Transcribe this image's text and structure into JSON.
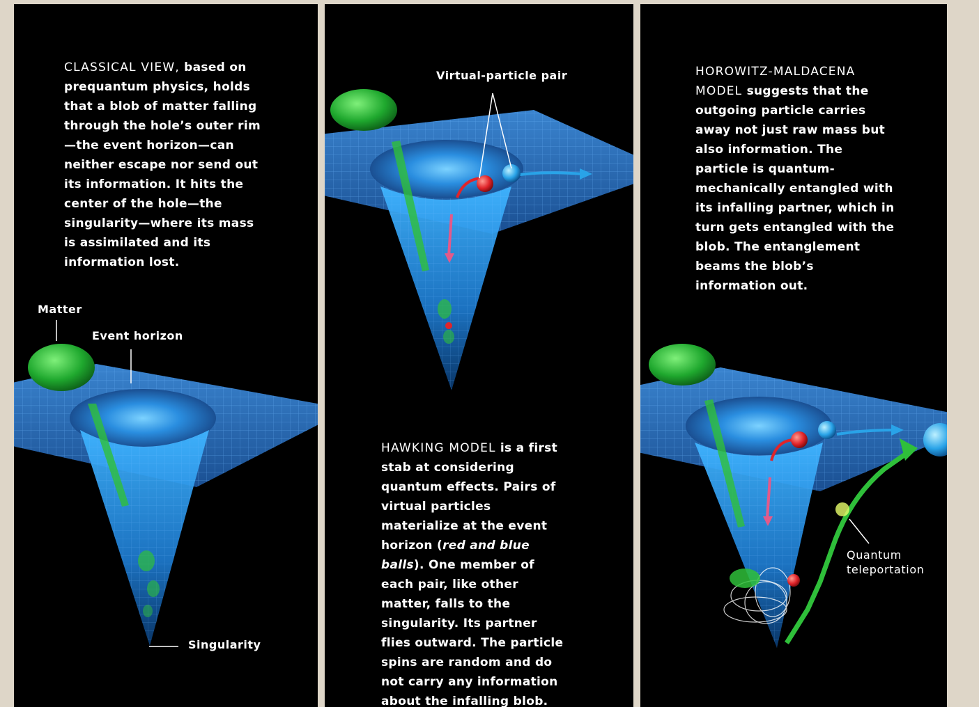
{
  "panels": {
    "classical": {
      "lead": "CLASSICAL VIEW,",
      "text": "based on prequantum physics, holds that a blob of matter falling through the hole’s outer rim—the event horizon—can neither escape nor send out its information. It hits the center of the hole—the singularity—where its mass is assimilated and its information lost.",
      "labels": {
        "matter": "Matter",
        "event_horizon": "Event horizon",
        "singularity": "Singularity"
      }
    },
    "hawking": {
      "lead": "HAWKING MODEL",
      "text_a": "is a first stab at considering quantum effects. Pairs of virtual particles materialize at the event horizon (",
      "text_italic": "red and blue balls",
      "text_b": "). One member of each pair, like other matter, falls to the singularity. Its partner flies outward. The particle spins are random and do not carry any information about the infalling blob.",
      "labels": {
        "virtual_pair": "Virtual-particle pair"
      }
    },
    "horowitz": {
      "lead": "HOROWITZ-MALDACENA MODEL",
      "text": "suggests that the outgoing particle carries away not just raw mass but also information. The particle is quantum-mechanically entangled with its infalling partner, which in turn gets entangled with the blob. The entanglement beams the blob’s information out.",
      "labels": {
        "teleport_1": "Quantum",
        "teleport_2": "teleportation"
      }
    }
  },
  "colors": {
    "grid": "#2f6fb8",
    "matter": "#2fbf3a",
    "red_particle": "#e0242a",
    "blue_particle": "#29a3e8",
    "separator": "#ded6c8"
  }
}
